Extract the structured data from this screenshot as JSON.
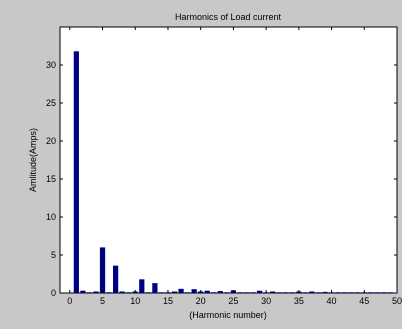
{
  "chart_data": {
    "type": "bar",
    "title": "Harmonics of Load current",
    "xlabel": "(Harmonic number)",
    "ylabel": "Amlitude(Amps)",
    "xlim": [
      -1.5,
      50
    ],
    "ylim": [
      0,
      35
    ],
    "xticks": [
      0,
      5,
      10,
      15,
      20,
      25,
      30,
      35,
      40,
      45,
      50
    ],
    "yticks": [
      0,
      5,
      10,
      15,
      20,
      25,
      30
    ],
    "grid": false,
    "legend": "none",
    "bar_color": "#000080",
    "x": [
      1,
      2,
      3,
      4,
      5,
      6,
      7,
      8,
      9,
      10,
      11,
      12,
      13,
      14,
      15,
      16,
      17,
      18,
      19,
      20,
      21,
      22,
      23,
      24,
      25,
      26,
      27,
      28,
      29,
      30,
      31,
      32,
      33,
      34,
      35,
      36,
      37,
      38,
      39,
      40,
      41,
      42,
      43,
      44,
      45,
      46,
      47,
      48,
      49
    ],
    "values": [
      31.8,
      0.3,
      0.1,
      0.2,
      6.0,
      0.1,
      3.6,
      0.2,
      0.1,
      0.2,
      1.8,
      0.1,
      1.3,
      0.1,
      0.1,
      0.2,
      0.55,
      0.1,
      0.5,
      0.2,
      0.3,
      0.1,
      0.25,
      0.1,
      0.35,
      0.1,
      0.1,
      0.1,
      0.3,
      0.1,
      0.2,
      0.1,
      0.1,
      0.1,
      0.2,
      0.1,
      0.2,
      0.1,
      0.15,
      0.1,
      0.1,
      0.1,
      0.1,
      0.1,
      0.1,
      0.1,
      0.1,
      0.1,
      0.1
    ]
  }
}
